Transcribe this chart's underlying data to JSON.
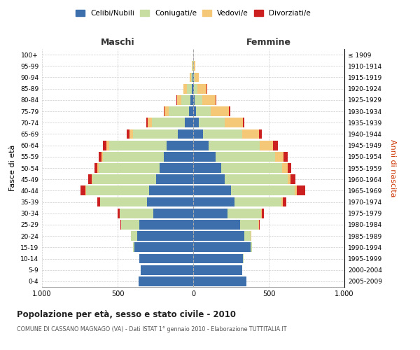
{
  "age_groups": [
    "0-4",
    "5-9",
    "10-14",
    "15-19",
    "20-24",
    "25-29",
    "30-34",
    "35-39",
    "40-44",
    "45-49",
    "50-54",
    "55-59",
    "60-64",
    "65-69",
    "70-74",
    "75-79",
    "80-84",
    "85-89",
    "90-94",
    "95-99",
    "100+"
  ],
  "birth_years": [
    "2005-2009",
    "2000-2004",
    "1995-1999",
    "1990-1994",
    "1985-1989",
    "1980-1984",
    "1975-1979",
    "1970-1974",
    "1965-1969",
    "1960-1964",
    "1955-1959",
    "1950-1954",
    "1945-1949",
    "1940-1944",
    "1935-1939",
    "1930-1934",
    "1925-1929",
    "1920-1924",
    "1915-1919",
    "1910-1914",
    "≤ 1909"
  ],
  "maschi": {
    "celibi": [
      360,
      345,
      355,
      390,
      370,
      355,
      265,
      305,
      290,
      245,
      220,
      195,
      175,
      100,
      55,
      30,
      18,
      8,
      5,
      2,
      0
    ],
    "coniugati": [
      0,
      0,
      2,
      10,
      40,
      120,
      220,
      310,
      420,
      420,
      405,
      400,
      380,
      300,
      220,
      130,
      60,
      35,
      10,
      4,
      1
    ],
    "vedovi": [
      0,
      0,
      0,
      0,
      1,
      2,
      2,
      3,
      5,
      5,
      8,
      10,
      18,
      20,
      25,
      30,
      30,
      20,
      8,
      3,
      0
    ],
    "divorziati": [
      0,
      0,
      0,
      0,
      2,
      5,
      12,
      18,
      30,
      25,
      20,
      22,
      25,
      20,
      8,
      5,
      3,
      2,
      0,
      0,
      0
    ]
  },
  "femmine": {
    "nubili": [
      350,
      325,
      330,
      380,
      340,
      310,
      225,
      275,
      250,
      210,
      185,
      150,
      100,
      65,
      35,
      18,
      10,
      5,
      3,
      2,
      0
    ],
    "coniugate": [
      0,
      0,
      2,
      10,
      40,
      120,
      225,
      310,
      420,
      415,
      405,
      390,
      340,
      260,
      175,
      100,
      50,
      25,
      8,
      3,
      1
    ],
    "vedove": [
      0,
      0,
      0,
      0,
      2,
      3,
      5,
      8,
      15,
      20,
      35,
      55,
      90,
      110,
      120,
      120,
      90,
      60,
      25,
      8,
      0
    ],
    "divorziate": [
      0,
      0,
      0,
      0,
      2,
      5,
      12,
      22,
      55,
      30,
      25,
      28,
      30,
      20,
      10,
      8,
      5,
      3,
      1,
      0,
      0
    ]
  },
  "colors": {
    "celibi": "#3d6fad",
    "coniugati": "#c8dda2",
    "vedovi": "#f5c878",
    "divorziati": "#cc2020"
  },
  "legend_labels": [
    "Celibi/Nubili",
    "Coniugati/e",
    "Vedovi/e",
    "Divorziati/e"
  ],
  "title": "Popolazione per età, sesso e stato civile - 2010",
  "subtitle": "COMUNE DI CASSANO MAGNAGO (VA) - Dati ISTAT 1° gennaio 2010 - Elaborazione TUTTITALIA.IT",
  "ylabel_left": "Fasce di età",
  "ylabel_right": "Anni di nascita",
  "xlabel_left": "Maschi",
  "xlabel_right": "Femmine",
  "xlim": 1000,
  "background_color": "#ffffff",
  "grid_color": "#cccccc"
}
